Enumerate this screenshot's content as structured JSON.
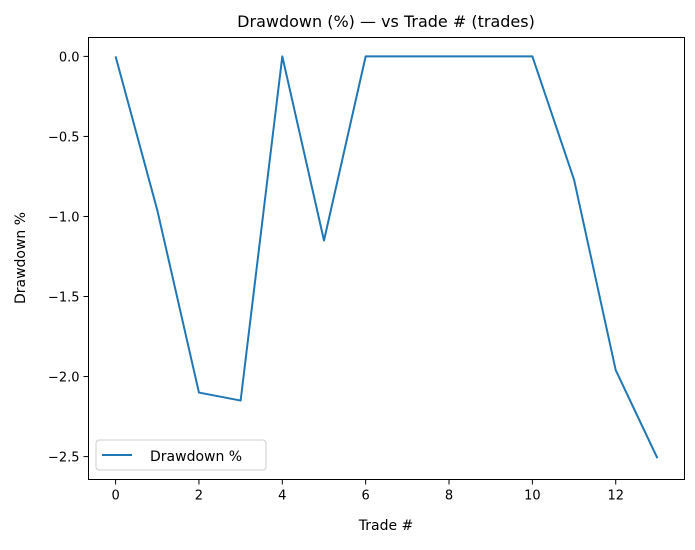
{
  "chart_data": {
    "type": "line",
    "title": "Drawdown (%) — vs Trade # (trades)",
    "xlabel": "Trade #",
    "ylabel": "Drawdown %",
    "xlim": [
      -0.65,
      13.65
    ],
    "ylim": [
      -2.643,
      0.118
    ],
    "xticks": [
      0,
      2,
      4,
      6,
      8,
      10,
      12
    ],
    "xtick_labels": [
      "0",
      "2",
      "4",
      "6",
      "8",
      "10",
      "12"
    ],
    "yticks": [
      0,
      -0.5,
      -1,
      -1.5,
      -2,
      -2.5
    ],
    "ytick_labels": [
      "0.0",
      "−0.5",
      "−1.0",
      "−1.5",
      "−2.0",
      "−2.5"
    ],
    "grid": false,
    "legend_position": "lower-left",
    "series": [
      {
        "name": "Drawdown %",
        "color": "#1f77b4",
        "x": [
          0,
          1,
          2,
          3,
          4,
          5,
          6,
          7,
          8,
          9,
          10,
          11,
          12,
          13
        ],
        "y": [
          0,
          -0.96,
          -2.1,
          -2.15,
          0,
          -1.15,
          0,
          0,
          0,
          0,
          0,
          -0.77,
          -1.96,
          -2.51
        ]
      }
    ]
  }
}
